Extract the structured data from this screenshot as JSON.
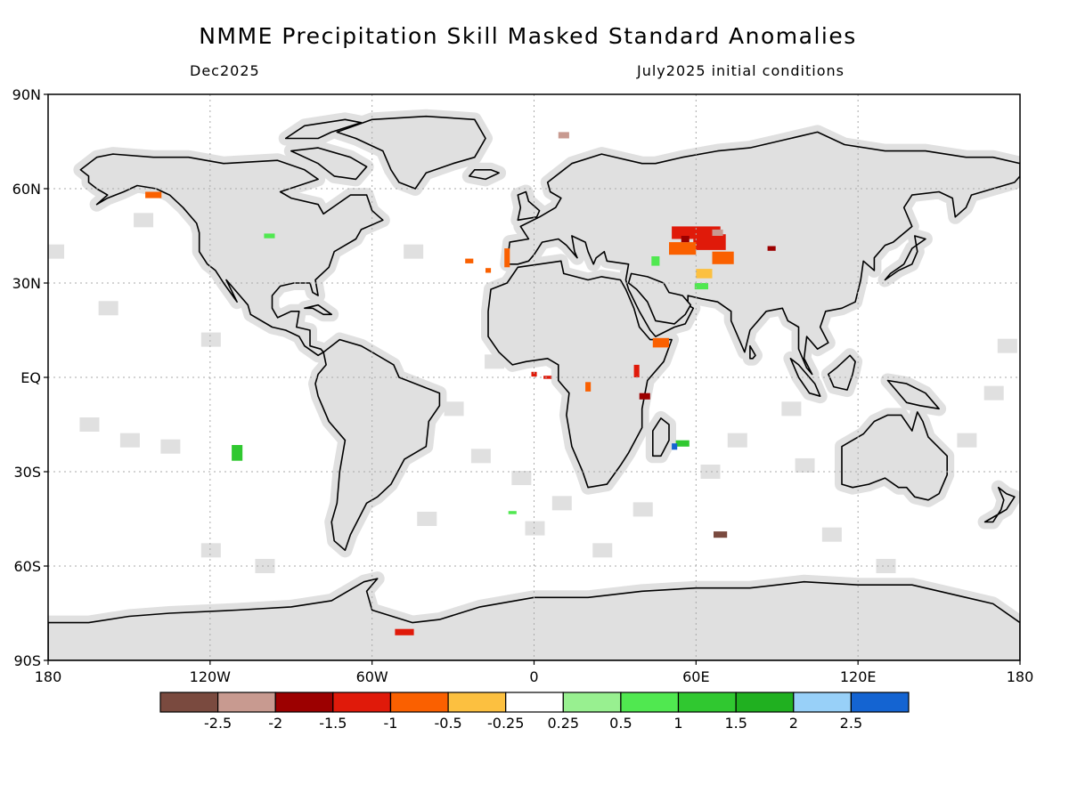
{
  "title": "NMME Precipitation Skill Masked Standard Anomalies",
  "subtitle_left": "Dec2025",
  "subtitle_right": "July2025 initial conditions",
  "lat_ticks": [
    {
      "label": "90N",
      "lat": 90
    },
    {
      "label": "60N",
      "lat": 60
    },
    {
      "label": "30N",
      "lat": 30
    },
    {
      "label": "EQ",
      "lat": 0
    },
    {
      "label": "30S",
      "lat": -30
    },
    {
      "label": "60S",
      "lat": -60
    },
    {
      "label": "90S",
      "lat": -90
    }
  ],
  "lon_ticks": [
    {
      "label": "180",
      "lon": -180
    },
    {
      "label": "120W",
      "lon": -120
    },
    {
      "label": "60W",
      "lon": -60
    },
    {
      "label": "0",
      "lon": 0
    },
    {
      "label": "60E",
      "lon": 60
    },
    {
      "label": "120E",
      "lon": 120
    },
    {
      "label": "180",
      "lon": 180
    }
  ],
  "colorbar": {
    "colors": [
      "#7a4a3f",
      "#c89a90",
      "#9c0000",
      "#e01a0a",
      "#fa6000",
      "#fcc040",
      "#ffffff",
      "#98f090",
      "#50e850",
      "#30c830",
      "#20b020",
      "#98d0f8",
      "#1464d2"
    ],
    "labels": [
      "-2.5",
      "-2",
      "-1.5",
      "-1",
      "-0.5",
      "-0.25",
      "0.25",
      "0.5",
      "1",
      "1.5",
      "2",
      "2.5"
    ]
  },
  "colors": {
    "land": "#e0e0e0",
    "skill_mask": "#e0e0e0",
    "coastline": "#000000",
    "grid": "#aaaaaa"
  },
  "anomaly_patches": [
    {
      "lon": 65,
      "lat": 43,
      "w": 12,
      "h": 5,
      "color": "#e01a0a"
    },
    {
      "lon": 60,
      "lat": 46,
      "w": 18,
      "h": 4,
      "color": "#e01a0a"
    },
    {
      "lon": 55,
      "lat": 41,
      "w": 10,
      "h": 4,
      "color": "#fa6000"
    },
    {
      "lon": 70,
      "lat": 38,
      "w": 8,
      "h": 4,
      "color": "#fa6000"
    },
    {
      "lon": 68,
      "lat": 46,
      "w": 4,
      "h": 2,
      "color": "#c89a90"
    },
    {
      "lon": 56,
      "lat": 44,
      "w": 3,
      "h": 2,
      "color": "#9c0000"
    },
    {
      "lon": 63,
      "lat": 33,
      "w": 6,
      "h": 3,
      "color": "#fcc040"
    },
    {
      "lon": 62,
      "lat": 29,
      "w": 5,
      "h": 2,
      "color": "#50e850"
    },
    {
      "lon": 45,
      "lat": 37,
      "w": 3,
      "h": 3,
      "color": "#50e850"
    },
    {
      "lon": 88,
      "lat": 41,
      "w": 3,
      "h": 1.5,
      "color": "#9c0000"
    },
    {
      "lon": 11,
      "lat": 77,
      "w": 4,
      "h": 2,
      "color": "#c89a90"
    },
    {
      "lon": -141,
      "lat": 58,
      "w": 6,
      "h": 2,
      "color": "#fa6000"
    },
    {
      "lon": -98,
      "lat": 45,
      "w": 4,
      "h": 1.5,
      "color": "#50e850"
    },
    {
      "lon": -24,
      "lat": 37,
      "w": 3,
      "h": 1.5,
      "color": "#fa6000"
    },
    {
      "lon": -17,
      "lat": 34,
      "w": 2,
      "h": 1.5,
      "color": "#fa6000"
    },
    {
      "lon": -10,
      "lat": 38,
      "w": 2,
      "h": 6,
      "color": "#fa6000"
    },
    {
      "lon": 47,
      "lat": 11,
      "w": 6,
      "h": 3,
      "color": "#fa6000"
    },
    {
      "lon": 38,
      "lat": 2,
      "w": 2,
      "h": 4,
      "color": "#e01a0a"
    },
    {
      "lon": 41,
      "lat": -6,
      "w": 4,
      "h": 2,
      "color": "#9c0000"
    },
    {
      "lon": 0,
      "lat": 1,
      "w": 2,
      "h": 1.5,
      "color": "#e01a0a"
    },
    {
      "lon": 5,
      "lat": 0,
      "w": 3,
      "h": 1,
      "color": "#e01a0a"
    },
    {
      "lon": 20,
      "lat": -3,
      "w": 2,
      "h": 3,
      "color": "#fa6000"
    },
    {
      "lon": 55,
      "lat": -21,
      "w": 5,
      "h": 2,
      "color": "#30c830"
    },
    {
      "lon": 52,
      "lat": -22,
      "w": 2,
      "h": 2,
      "color": "#1464d2"
    },
    {
      "lon": 69,
      "lat": -50,
      "w": 5,
      "h": 2,
      "color": "#7a4a3f"
    },
    {
      "lon": -110,
      "lat": -24,
      "w": 4,
      "h": 5,
      "color": "#30c830"
    },
    {
      "lon": -8,
      "lat": -43,
      "w": 3,
      "h": 1,
      "color": "#50e850"
    },
    {
      "lon": -48,
      "lat": -81,
      "w": 7,
      "h": 2,
      "color": "#e01a0a"
    }
  ]
}
